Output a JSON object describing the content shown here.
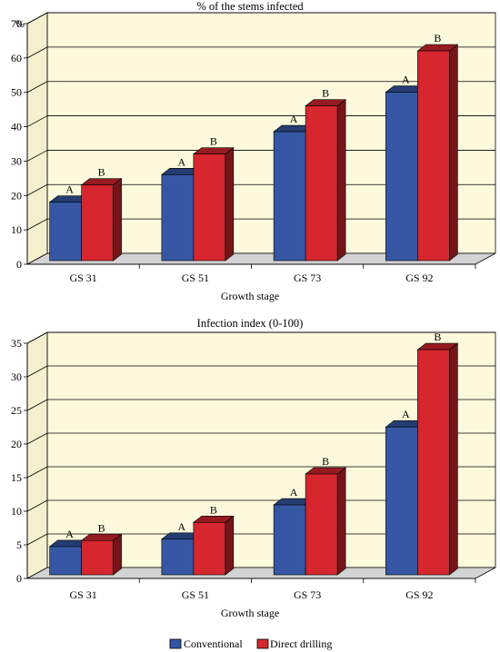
{
  "chart_data": [
    {
      "type": "bar",
      "title": "% of the stems infected",
      "ylabel": "%",
      "xlabel": "Growth stage",
      "ylim": [
        0,
        70
      ],
      "yticks": [
        0,
        10,
        20,
        30,
        40,
        50,
        60,
        70
      ],
      "grid": true,
      "categories": [
        "GS 31",
        "GS 51",
        "GS 73",
        "GS 92"
      ],
      "series": [
        {
          "name": "Conventional",
          "values": [
            17,
            25,
            37.5,
            49
          ],
          "labels": [
            "A",
            "A",
            "A",
            "A"
          ],
          "color": "#3557a3"
        },
        {
          "name": "Direct drilling",
          "values": [
            22,
            31,
            45,
            61
          ],
          "labels": [
            "B",
            "B",
            "B",
            "B"
          ],
          "color": "#d6262e"
        }
      ]
    },
    {
      "type": "bar",
      "title": "Infection index (0-100)",
      "ylabel": "",
      "xlabel": "Growth stage",
      "ylim": [
        0,
        35
      ],
      "yticks": [
        0,
        5,
        10,
        15,
        20,
        25,
        30,
        35
      ],
      "grid": true,
      "categories": [
        "GS 31",
        "GS 51",
        "GS 73",
        "GS 92"
      ],
      "series": [
        {
          "name": "Conventional",
          "values": [
            4.2,
            5.3,
            10.4,
            22
          ],
          "labels": [
            "A",
            "A",
            "A",
            "A"
          ],
          "color": "#3557a3"
        },
        {
          "name": "Direct drilling",
          "values": [
            5.1,
            7.8,
            15,
            33.5
          ],
          "labels": [
            "B",
            "B",
            "B",
            "B"
          ],
          "color": "#d6262e"
        }
      ]
    }
  ],
  "legend": {
    "placement": "bottom-center",
    "items": [
      {
        "label": "Conventional",
        "color": "#3557a3"
      },
      {
        "label": "Direct drilling",
        "color": "#d6262e"
      }
    ]
  },
  "colors": {
    "plot_background": "#fdf9dc",
    "floor": "#d3d3d3"
  }
}
